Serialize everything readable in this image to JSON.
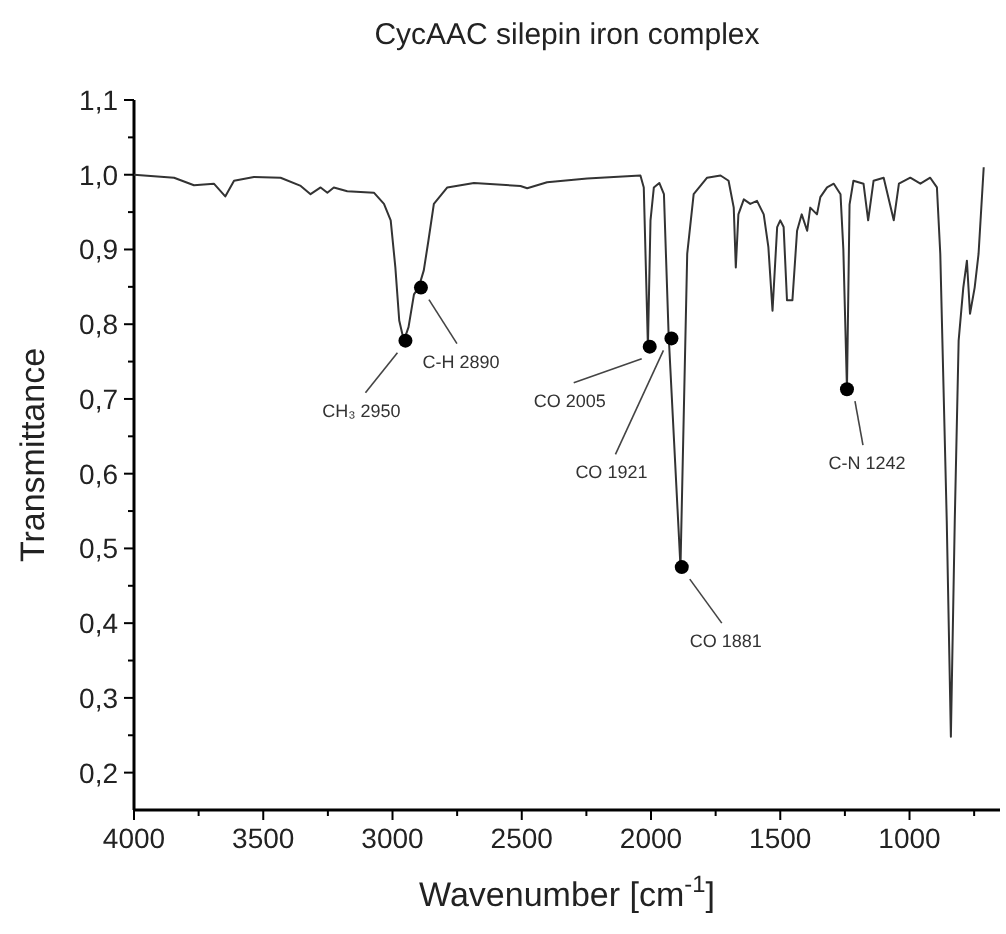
{
  "chart_data": {
    "type": "line",
    "title": "CycAAC silepin iron complex",
    "xlabel": "Wavenumber [cm$^{-1}$]",
    "ylabel": "Transmittance",
    "xlim": [
      4000,
      650
    ],
    "xticks": [
      4000,
      {
        "value": 3750,
        "label": null
      },
      3500,
      {
        "value": 3250,
        "label": null
      },
      3000,
      {
        "value": 2750,
        "label": null
      },
      2500,
      {
        "value": 2250,
        "label": null
      },
      2000,
      {
        "value": 1750,
        "label": null
      },
      1500,
      {
        "value": 1250,
        "label": null
      },
      1000,
      {
        "value": 750,
        "label": null
      }
    ],
    "ylim": [
      0.15,
      1.1
    ],
    "yticks": [
      {
        "value": 0.2,
        "label": "0,2"
      },
      {
        "value": 0.25,
        "label": null
      },
      {
        "value": 0.3,
        "label": "0,3"
      },
      {
        "value": 0.35,
        "label": null
      },
      {
        "value": 0.4,
        "label": "0,4"
      },
      {
        "value": 0.45,
        "label": null
      },
      {
        "value": 0.5,
        "label": "0,5"
      },
      {
        "value": 0.55,
        "label": null
      },
      {
        "value": 0.6,
        "label": "0,6"
      },
      {
        "value": 0.65,
        "label": null
      },
      {
        "value": 0.7,
        "label": "0,7"
      },
      {
        "value": 0.75,
        "label": null
      },
      {
        "value": 0.8,
        "label": "0,8"
      },
      {
        "value": 0.85,
        "label": null
      },
      {
        "value": 0.9,
        "label": "0,9"
      },
      {
        "value": 0.95,
        "label": null
      },
      {
        "value": 1.0,
        "label": "1,0"
      },
      {
        "value": 1.05,
        "label": null
      },
      {
        "value": 1.1,
        "label": "1,1"
      }
    ],
    "grid": false,
    "series": [
      {
        "color": "#333333",
        "marker": "none",
        "x": [
          4000,
          3845,
          3768,
          3691,
          3647,
          3613,
          3536,
          3433,
          3355,
          3317,
          3278,
          3252,
          3227,
          3175,
          3072,
          3033,
          3007,
          2989,
          2974,
          2956,
          2938,
          2917,
          2899,
          2879,
          2861,
          2840,
          2788,
          2685,
          2505,
          2479,
          2402,
          2247,
          2041,
          2028,
          2012,
          2002,
          1989,
          1968,
          1950,
          1932,
          1886,
          1860,
          1835,
          1783,
          1731,
          1700,
          1680,
          1672,
          1662,
          1641,
          1616,
          1590,
          1564,
          1546,
          1530,
          1512,
          1500,
          1487,
          1474,
          1453,
          1435,
          1417,
          1396,
          1384,
          1358,
          1345,
          1319,
          1293,
          1267,
          1256,
          1242,
          1232,
          1217,
          1178,
          1160,
          1139,
          1100,
          1061,
          1041,
          997,
          958,
          920,
          894,
          881,
          856,
          840,
          825,
          810,
          792,
          778,
          766,
          748,
          733,
          713
        ],
        "values": [
          1.0,
          0.996,
          0.986,
          0.988,
          0.971,
          0.992,
          0.997,
          0.996,
          0.985,
          0.974,
          0.983,
          0.976,
          0.983,
          0.978,
          0.976,
          0.961,
          0.939,
          0.876,
          0.805,
          0.778,
          0.796,
          0.84,
          0.849,
          0.872,
          0.912,
          0.961,
          0.983,
          0.989,
          0.985,
          0.982,
          0.99,
          0.995,
          0.999,
          0.983,
          0.77,
          0.939,
          0.983,
          0.989,
          0.974,
          0.787,
          0.475,
          0.894,
          0.974,
          0.996,
          0.999,
          0.992,
          0.956,
          0.876,
          0.947,
          0.967,
          0.961,
          0.965,
          0.947,
          0.903,
          0.818,
          0.93,
          0.939,
          0.93,
          0.832,
          0.832,
          0.925,
          0.947,
          0.925,
          0.956,
          0.947,
          0.97,
          0.983,
          0.988,
          0.974,
          0.9,
          0.713,
          0.96,
          0.992,
          0.988,
          0.939,
          0.992,
          0.996,
          0.939,
          0.988,
          0.996,
          0.988,
          0.996,
          0.983,
          0.894,
          0.537,
          0.248,
          0.537,
          0.778,
          0.849,
          0.885,
          0.814,
          0.849,
          0.894,
          1.01
        ]
      },
      {
        "type": "scatter",
        "color": "#000000",
        "marker": "circle",
        "x": [
          2950,
          2890,
          2005,
          1921,
          1881,
          1242
        ],
        "values": [
          0.778,
          0.849,
          0.77,
          0.781,
          0.475,
          0.713
        ]
      }
    ],
    "annotations": [
      {
        "text": "CH₃ 2950",
        "x": 2950,
        "y": 0.778
      },
      {
        "text": "C-H 2890",
        "x": 2890,
        "y": 0.849
      },
      {
        "text": "CO 2005",
        "x": 2005,
        "y": 0.77
      },
      {
        "text": "CO 1921",
        "x": 1921,
        "y": 0.781
      },
      {
        "text": "CO 1881",
        "x": 1881,
        "y": 0.475
      },
      {
        "text": "C-N 1242",
        "x": 1242,
        "y": 0.713
      }
    ]
  }
}
